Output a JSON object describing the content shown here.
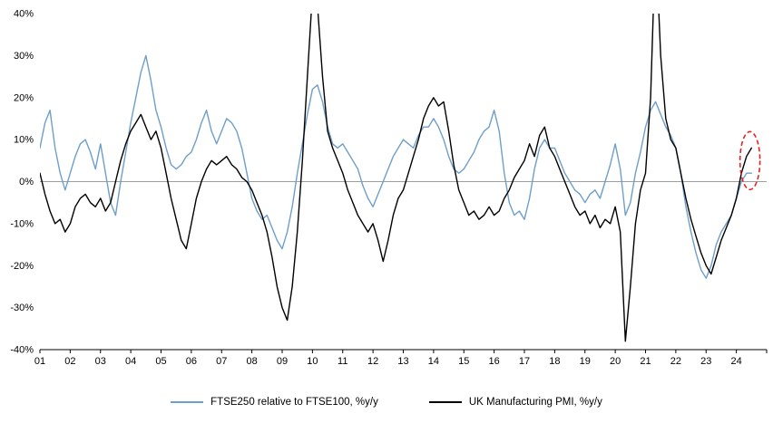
{
  "chart_data": {
    "type": "line",
    "title": "",
    "x_start": 2001.0,
    "x_step": 0.166667,
    "x_end_axis": 2025.0,
    "ylim": [
      -40,
      40
    ],
    "grid": "zero-line-only",
    "legend_position": "bottom-center",
    "x_axis": {
      "tick_years": [
        2001,
        2002,
        2003,
        2004,
        2005,
        2006,
        2007,
        2008,
        2009,
        2010,
        2011,
        2012,
        2013,
        2014,
        2015,
        2016,
        2017,
        2018,
        2019,
        2020,
        2021,
        2022,
        2023,
        2024
      ],
      "tick_labels": [
        "01",
        "02",
        "03",
        "04",
        "05",
        "06",
        "07",
        "08",
        "09",
        "10",
        "11",
        "12",
        "13",
        "14",
        "15",
        "16",
        "17",
        "18",
        "19",
        "20",
        "21",
        "22",
        "23",
        "24"
      ]
    },
    "yticks": [
      {
        "value": 40,
        "label": "40%"
      },
      {
        "value": 30,
        "label": "30%"
      },
      {
        "value": 20,
        "label": "20%"
      },
      {
        "value": 10,
        "label": "10%"
      },
      {
        "value": 0,
        "label": "0%"
      },
      {
        "value": -10,
        "label": "-10%"
      },
      {
        "value": -20,
        "label": "-20%"
      },
      {
        "value": -30,
        "label": "-30%"
      },
      {
        "value": -40,
        "label": "-40%"
      }
    ],
    "series": [
      {
        "id": "ftse250-relative-line",
        "name": "FTSE250 relative to FTSE100, %y/y",
        "color": "#6f9ec9",
        "values": [
          8,
          14,
          17,
          8,
          2,
          -2,
          2,
          6,
          9,
          10,
          7,
          3,
          9,
          2,
          -5,
          -8,
          0,
          7,
          14,
          20,
          26,
          30,
          24,
          17,
          13,
          8,
          4,
          3,
          4,
          6,
          7,
          10,
          14,
          17,
          12,
          9,
          12,
          15,
          14,
          12,
          8,
          2,
          -4,
          -7,
          -9,
          -8,
          -11,
          -14,
          -16,
          -12,
          -6,
          2,
          9,
          16,
          22,
          23,
          19,
          13,
          9,
          8,
          9,
          7,
          5,
          3,
          -1,
          -4,
          -6,
          -3,
          0,
          3,
          6,
          8,
          10,
          9,
          8,
          11,
          13,
          13,
          15,
          13,
          10,
          6,
          3,
          2,
          3,
          5,
          7,
          10,
          12,
          13,
          17,
          12,
          2,
          -5,
          -8,
          -7,
          -9,
          -4,
          3,
          8,
          10,
          8,
          8,
          5,
          2,
          0,
          -2,
          -3,
          -5,
          -3,
          -2,
          -4,
          0,
          4,
          9,
          3,
          -8,
          -5,
          2,
          7,
          13,
          17,
          19,
          16,
          13,
          11,
          8,
          2,
          -6,
          -12,
          -17,
          -21,
          -23,
          -20,
          -15,
          -12,
          -10,
          -8,
          -4,
          0,
          2,
          2
        ]
      },
      {
        "id": "uk-manufacturing-pmi-line",
        "name": "UK Manufacturing PMI, %y/y",
        "color": "#000000",
        "values": [
          2,
          -3,
          -7,
          -10,
          -9,
          -12,
          -10,
          -6,
          -4,
          -3,
          -5,
          -6,
          -4,
          -7,
          -5,
          0,
          5,
          9,
          12,
          14,
          16,
          13,
          10,
          12,
          8,
          2,
          -4,
          -9,
          -14,
          -16,
          -10,
          -4,
          0,
          3,
          5,
          4,
          5,
          6,
          4,
          3,
          1,
          0,
          -2,
          -5,
          -8,
          -12,
          -18,
          -25,
          -30,
          -33,
          -25,
          -12,
          5,
          25,
          45,
          42,
          25,
          12,
          8,
          5,
          2,
          -2,
          -5,
          -8,
          -10,
          -12,
          -10,
          -14,
          -19,
          -14,
          -8,
          -4,
          -2,
          2,
          6,
          10,
          15,
          18,
          20,
          18,
          19,
          12,
          4,
          -2,
          -5,
          -8,
          -7,
          -9,
          -8,
          -6,
          -8,
          -7,
          -4,
          -2,
          1,
          3,
          5,
          9,
          6,
          11,
          13,
          8,
          6,
          3,
          0,
          -3,
          -6,
          -8,
          -7,
          -10,
          -8,
          -11,
          -9,
          -10,
          -6,
          -12,
          -38,
          -25,
          -10,
          -2,
          2,
          20,
          58,
          30,
          15,
          10,
          8,
          2,
          -4,
          -9,
          -13,
          -17,
          -20,
          -22,
          -18,
          -14,
          -11,
          -8,
          -4,
          2,
          6,
          8
        ]
      }
    ],
    "annotation": {
      "type": "dashed-ellipse",
      "color": "#e02424",
      "x": 2024.45,
      "y": 5,
      "meaning": "highlight of most recent data points"
    },
    "zero_line_color": "#9e9e9e"
  }
}
